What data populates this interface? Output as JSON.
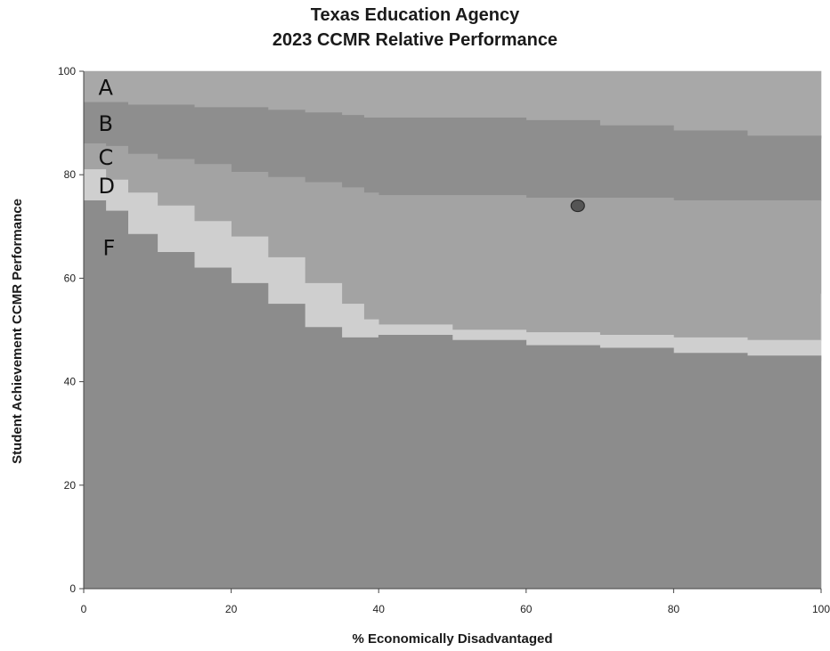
{
  "chart_data": {
    "type": "area",
    "title": "Texas Education Agency",
    "subtitle": "2023 CCMR Relative Performance",
    "xlabel": "% Economically Disadvantaged",
    "ylabel": "Student Achievement CCMR Performance",
    "xlim": [
      0,
      100
    ],
    "ylim": [
      0,
      100
    ],
    "xticks": [
      0,
      20,
      40,
      60,
      80,
      100
    ],
    "yticks": [
      0,
      20,
      40,
      60,
      80,
      100
    ],
    "grid": false,
    "band_labels": [
      "A",
      "B",
      "C",
      "D",
      "F"
    ],
    "band_colors": {
      "A": "#a8a8a8",
      "B": "#8e8e8e",
      "C": "#a3a3a3",
      "D": "#cfcfcf",
      "F": "#8c8c8c"
    },
    "cutoffs": {
      "x": [
        0,
        3,
        6,
        10,
        15,
        20,
        25,
        30,
        35,
        38,
        40,
        50,
        60,
        70,
        80,
        90,
        100
      ],
      "A_min": [
        94,
        94,
        93.5,
        93.5,
        93,
        93,
        92.5,
        92,
        91.5,
        91,
        91,
        91,
        90.5,
        89.5,
        88.5,
        87.5,
        87
      ],
      "B_min": [
        86,
        85.5,
        84,
        83,
        82,
        80.5,
        79.5,
        78.5,
        77.5,
        76.5,
        76,
        76,
        75.5,
        75.5,
        75,
        75,
        75
      ],
      "C_min": [
        81,
        79,
        76.5,
        74,
        71,
        68,
        64,
        59,
        55,
        52,
        51,
        50,
        49.5,
        49,
        48.5,
        48,
        57
      ],
      "D_min": [
        75,
        73,
        68.5,
        65,
        62,
        59,
        55,
        50.5,
        48.5,
        48.5,
        49,
        48,
        47,
        46.5,
        45.5,
        45,
        44
      ]
    },
    "points": [
      {
        "x": 67,
        "y": 74
      }
    ]
  }
}
